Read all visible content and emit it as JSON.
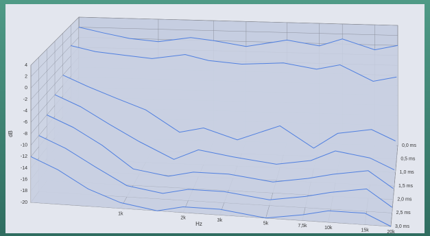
{
  "chart_data": {
    "type": "waterfall",
    "x_label": "Hz",
    "y_label": "dB",
    "x": [
      370,
      500,
      700,
      1000,
      1500,
      2000,
      3000,
      5000,
      7500,
      10000,
      15000,
      20000
    ],
    "z": [
      0,
      0.5,
      1,
      1.5,
      2,
      2.5,
      3
    ],
    "series": [
      {
        "color": "#4f7fe0",
        "values": [
          2,
          1,
          0,
          -0.5,
          0.5,
          0,
          -1,
          0.5,
          -0.5,
          1,
          -1,
          0
        ]
      },
      {
        "color": "#4f7fe0",
        "values": [
          0,
          -1,
          -1.5,
          -2,
          -1,
          -2,
          -2.5,
          -2,
          -3,
          -2,
          -5,
          -4
        ]
      },
      {
        "color": "#4f7fe0",
        "values": [
          -4,
          -6,
          -8,
          -10,
          -14,
          -13,
          -15,
          -12,
          -16,
          -13,
          -12,
          -14
        ]
      },
      {
        "color": "#4f7fe0",
        "values": [
          -6,
          -8,
          -11,
          -14,
          -17,
          -15,
          -16,
          -17,
          -16,
          -14,
          -15,
          -17
        ]
      },
      {
        "color": "#4f7fe0",
        "values": [
          -8,
          -10,
          -13,
          -17,
          -18,
          -17,
          -17,
          -18,
          -17,
          -16,
          -15,
          -18
        ]
      },
      {
        "color": "#4f7fe0",
        "values": [
          -10,
          -12,
          -15,
          -18,
          -19,
          -18,
          -18,
          -19,
          -18,
          -17,
          -16,
          -19
        ]
      },
      {
        "color": "#4f7fe0",
        "values": [
          -12,
          -14,
          -17,
          -19,
          -20,
          -19,
          -19,
          -20,
          -19,
          -18,
          -18,
          -20
        ]
      }
    ],
    "log_x": true,
    "xlim": [
      370,
      20000
    ],
    "xticks": [
      {
        "value": 1000,
        "label": "1k"
      },
      {
        "value": 2000,
        "label": "2k"
      },
      {
        "value": 3000,
        "label": "3k"
      },
      {
        "value": 5000,
        "label": "5k"
      },
      {
        "value": 7500,
        "label": "7,5k"
      },
      {
        "value": 10000,
        "label": "10k"
      },
      {
        "value": 15000,
        "label": "15k"
      },
      {
        "value": 20000,
        "label": "20k"
      }
    ],
    "ylim": [
      -20,
      4
    ],
    "yticks": [
      4,
      2,
      0,
      -2,
      -4,
      -6,
      -8,
      -10,
      -12,
      -14,
      -16,
      -18,
      -20
    ],
    "zlim": [
      0,
      3
    ],
    "zticks": [
      {
        "value": 0,
        "label": "0,0 ms"
      },
      {
        "value": 0.5,
        "label": "0,5 ms"
      },
      {
        "value": 1,
        "label": "1,0 ms"
      },
      {
        "value": 1.5,
        "label": "1,5 ms"
      },
      {
        "value": 2,
        "label": "2,0 ms"
      },
      {
        "value": 2.5,
        "label": "2,5 ms"
      },
      {
        "value": 3,
        "label": "3,0 ms"
      }
    ],
    "grid": true
  }
}
